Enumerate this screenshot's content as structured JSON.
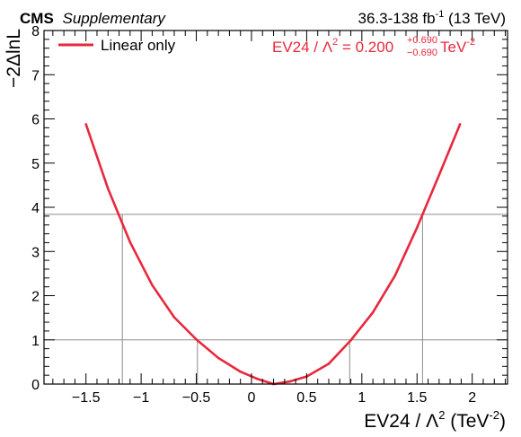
{
  "header": {
    "experiment": "CMS",
    "qualifier": "Supplementary",
    "lumi_prefix": "36.3-138 fb",
    "lumi_exp": "-1",
    "lumi_suffix": " (13 TeV)"
  },
  "legend": {
    "entry": "Linear only",
    "placement": "top-left"
  },
  "result": {
    "lhs": "EV24 / Λ",
    "lhs_exp": "2",
    "eq": " = 0.200",
    "up": "+0.690",
    "down": "−0.690",
    "unit": " TeV",
    "unit_exp": "-2"
  },
  "axes": {
    "xlabel_main": "EV24 / Λ",
    "xlabel_exp": "2",
    "xlabel_unit": " (TeV",
    "xlabel_unit_exp": "-2",
    "xlabel_close": ")",
    "ylabel": "−2ΔlnL"
  },
  "colors": {
    "curve": "#e8283c",
    "result_text": "#e8283c",
    "reference_lines": "#8c8c8c",
    "frame": "#000000"
  },
  "chart_data": {
    "type": "line",
    "xlim": [
      -1.88,
      2.32
    ],
    "ylim": [
      0,
      8
    ],
    "x_ticks": [
      -1.5,
      -1,
      -0.5,
      0,
      0.5,
      1,
      1.5,
      2
    ],
    "x_tick_labels": [
      "−1.5",
      "−1",
      "−0.5",
      "0",
      "0.5",
      "1",
      "1.5",
      "2"
    ],
    "y_ticks": [
      0,
      1,
      2,
      3,
      4,
      5,
      6,
      7,
      8
    ],
    "y_tick_labels": [
      "0",
      "1",
      "2",
      "3",
      "4",
      "5",
      "6",
      "7",
      "8"
    ],
    "grid": false,
    "series": [
      {
        "name": "Linear only",
        "x": [
          -1.5,
          -1.3,
          -1.1,
          -0.9,
          -0.7,
          -0.5,
          -0.3,
          -0.1,
          0.05,
          0.2,
          0.35,
          0.5,
          0.7,
          0.9,
          1.1,
          1.3,
          1.5,
          1.7,
          1.89
        ],
        "y": [
          5.88,
          4.42,
          3.21,
          2.24,
          1.51,
          1.01,
          0.59,
          0.28,
          0.12,
          0.0,
          0.06,
          0.17,
          0.46,
          0.99,
          1.62,
          2.45,
          3.54,
          4.73,
          5.88
        ]
      }
    ],
    "reference_levels": [
      1.0,
      3.84
    ],
    "interval_bounds_1": [
      -0.49,
      0.89
    ],
    "interval_bounds_384": [
      -1.17,
      1.55
    ],
    "best_fit": 0.2,
    "uncertainty_up": 0.69,
    "uncertainty_down": 0.69
  }
}
